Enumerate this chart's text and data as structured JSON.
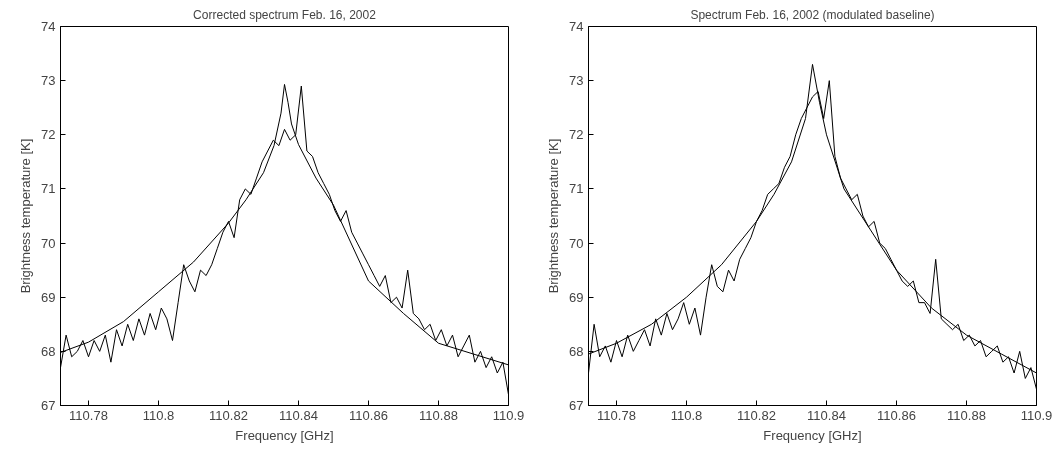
{
  "chart_data": [
    {
      "type": "line",
      "title": "Corrected spectrum Feb. 16, 2002",
      "xlabel": "Frequency [GHz]",
      "ylabel": "Brightness temperature [K]",
      "x": [
        110.772,
        110.7736,
        110.7752,
        110.7768,
        110.7784,
        110.78,
        110.7816,
        110.7832,
        110.7848,
        110.7864,
        110.788,
        110.7896,
        110.7912,
        110.7928,
        110.7944,
        110.796,
        110.7976,
        110.7992,
        110.8008,
        110.8024,
        110.804,
        110.8056,
        110.8072,
        110.8088,
        110.8104,
        110.812,
        110.8136,
        110.8152,
        110.8168,
        110.8184,
        110.82,
        110.8216,
        110.8232,
        110.8248,
        110.8264,
        110.828,
        110.8296,
        110.8312,
        110.8328,
        110.8344,
        110.836,
        110.8376,
        110.8392,
        110.8408,
        110.8424,
        110.844,
        110.8456,
        110.8472,
        110.8488,
        110.8504,
        110.852,
        110.8536,
        110.8552,
        110.8568,
        110.8584,
        110.86,
        110.8616,
        110.8632,
        110.8648,
        110.8664,
        110.868,
        110.8696,
        110.8712,
        110.8728,
        110.8744,
        110.876,
        110.8776,
        110.8792,
        110.8808,
        110.8824,
        110.884,
        110.8856,
        110.8872,
        110.8888,
        110.8904,
        110.892,
        110.8936,
        110.8952,
        110.8968,
        110.8984,
        110.9
      ],
      "series": [
        {
          "color": "#000000",
          "values": [
            67.7,
            68.3,
            67.9,
            68.0,
            68.2,
            67.9,
            68.2,
            68.0,
            68.3,
            67.8,
            68.4,
            68.1,
            68.5,
            68.2,
            68.6,
            68.3,
            68.7,
            68.4,
            68.8,
            68.6,
            68.2,
            68.9,
            69.6,
            69.3,
            69.1,
            69.5,
            69.4,
            69.6,
            69.9,
            70.2,
            70.4,
            70.1,
            70.8,
            71.0,
            70.9,
            71.2,
            71.5,
            71.7,
            71.9,
            71.8,
            72.1,
            71.9,
            72.0,
            72.9,
            71.7,
            71.6,
            71.3,
            71.1,
            70.9,
            70.6,
            70.4,
            70.6,
            70.2,
            70.0,
            69.8,
            69.6,
            69.4,
            69.2,
            69.4,
            68.9,
            69.0,
            68.8,
            69.5,
            68.7,
            68.6,
            68.4,
            68.5,
            68.2,
            68.4,
            68.1,
            68.3,
            67.9,
            68.1,
            68.3,
            67.8,
            68.0,
            67.7,
            67.9,
            67.6,
            67.8,
            67.2
          ]
        },
        {
          "color": "#000000",
          "x": [
            110.772,
            110.78,
            110.79,
            110.8,
            110.81,
            110.82,
            110.825,
            110.83,
            110.833,
            110.835,
            110.836,
            110.837,
            110.838,
            110.84,
            110.845,
            110.85,
            110.86,
            110.87,
            110.88,
            110.89,
            110.9
          ],
          "values": [
            67.98,
            68.17,
            68.55,
            69.1,
            69.65,
            70.37,
            70.8,
            71.3,
            71.8,
            72.4,
            72.93,
            72.6,
            72.2,
            71.82,
            71.2,
            70.7,
            69.3,
            68.7,
            68.15,
            67.95,
            67.75
          ]
        }
      ],
      "xlim": [
        110.772,
        110.9
      ],
      "ylim": [
        67,
        74
      ],
      "xticks": [
        110.78,
        110.8,
        110.82,
        110.84,
        110.86,
        110.88,
        110.9
      ],
      "yticks": [
        67,
        68,
        69,
        70,
        71,
        72,
        73,
        74
      ],
      "grid": false,
      "marker": "none",
      "line_style": "solid"
    },
    {
      "type": "line",
      "title": "Spectrum Feb. 16, 2002 (modulated baseline)",
      "xlabel": "Frequency [GHz]",
      "ylabel": "Brightness temperature [K]",
      "x": [
        110.772,
        110.7736,
        110.7752,
        110.7768,
        110.7784,
        110.78,
        110.7816,
        110.7832,
        110.7848,
        110.7864,
        110.788,
        110.7896,
        110.7912,
        110.7928,
        110.7944,
        110.796,
        110.7976,
        110.7992,
        110.8008,
        110.8024,
        110.804,
        110.8056,
        110.8072,
        110.8088,
        110.8104,
        110.812,
        110.8136,
        110.8152,
        110.8168,
        110.8184,
        110.82,
        110.8216,
        110.8232,
        110.8248,
        110.8264,
        110.828,
        110.8296,
        110.8312,
        110.8328,
        110.8344,
        110.836,
        110.8376,
        110.8392,
        110.8408,
        110.8424,
        110.844,
        110.8456,
        110.8472,
        110.8488,
        110.8504,
        110.852,
        110.8536,
        110.8552,
        110.8568,
        110.8584,
        110.86,
        110.8616,
        110.8632,
        110.8648,
        110.8664,
        110.868,
        110.8696,
        110.8712,
        110.8728,
        110.8744,
        110.876,
        110.8776,
        110.8792,
        110.8808,
        110.8824,
        110.884,
        110.8856,
        110.8872,
        110.8888,
        110.8904,
        110.892,
        110.8936,
        110.8952,
        110.8968,
        110.8984,
        110.9
      ],
      "series": [
        {
          "color": "#000000",
          "values": [
            67.6,
            68.5,
            67.9,
            68.1,
            67.8,
            68.2,
            67.9,
            68.3,
            68.0,
            68.2,
            68.4,
            68.1,
            68.6,
            68.3,
            68.7,
            68.4,
            68.6,
            68.9,
            68.5,
            68.8,
            68.3,
            69.0,
            69.6,
            69.2,
            69.1,
            69.5,
            69.3,
            69.7,
            69.9,
            70.1,
            70.4,
            70.6,
            70.9,
            71.0,
            71.1,
            71.4,
            71.6,
            72.0,
            72.3,
            72.5,
            72.7,
            72.8,
            72.3,
            73.0,
            71.6,
            71.2,
            71.0,
            70.8,
            70.9,
            70.5,
            70.3,
            70.4,
            70.0,
            69.9,
            69.7,
            69.5,
            69.3,
            69.2,
            69.3,
            68.9,
            68.9,
            68.7,
            69.7,
            68.6,
            68.5,
            68.4,
            68.5,
            68.2,
            68.3,
            68.1,
            68.2,
            67.9,
            68.0,
            68.1,
            67.8,
            67.9,
            67.6,
            68.0,
            67.5,
            67.7,
            67.3
          ]
        },
        {
          "color": "#000000",
          "x": [
            110.772,
            110.78,
            110.79,
            110.8,
            110.81,
            110.82,
            110.825,
            110.83,
            110.834,
            110.836,
            110.838,
            110.84,
            110.845,
            110.85,
            110.86,
            110.87,
            110.88,
            110.89,
            110.9
          ],
          "values": [
            67.95,
            68.15,
            68.5,
            69.0,
            69.6,
            70.4,
            70.9,
            71.5,
            72.3,
            73.3,
            72.6,
            72.0,
            71.0,
            70.5,
            69.5,
            68.8,
            68.3,
            67.95,
            67.6
          ]
        }
      ],
      "xlim": [
        110.772,
        110.9
      ],
      "ylim": [
        67,
        74
      ],
      "xticks": [
        110.78,
        110.8,
        110.82,
        110.84,
        110.86,
        110.88,
        110.9
      ],
      "yticks": [
        67,
        68,
        69,
        70,
        71,
        72,
        73,
        74
      ],
      "grid": false,
      "marker": "none",
      "line_style": "solid"
    }
  ]
}
